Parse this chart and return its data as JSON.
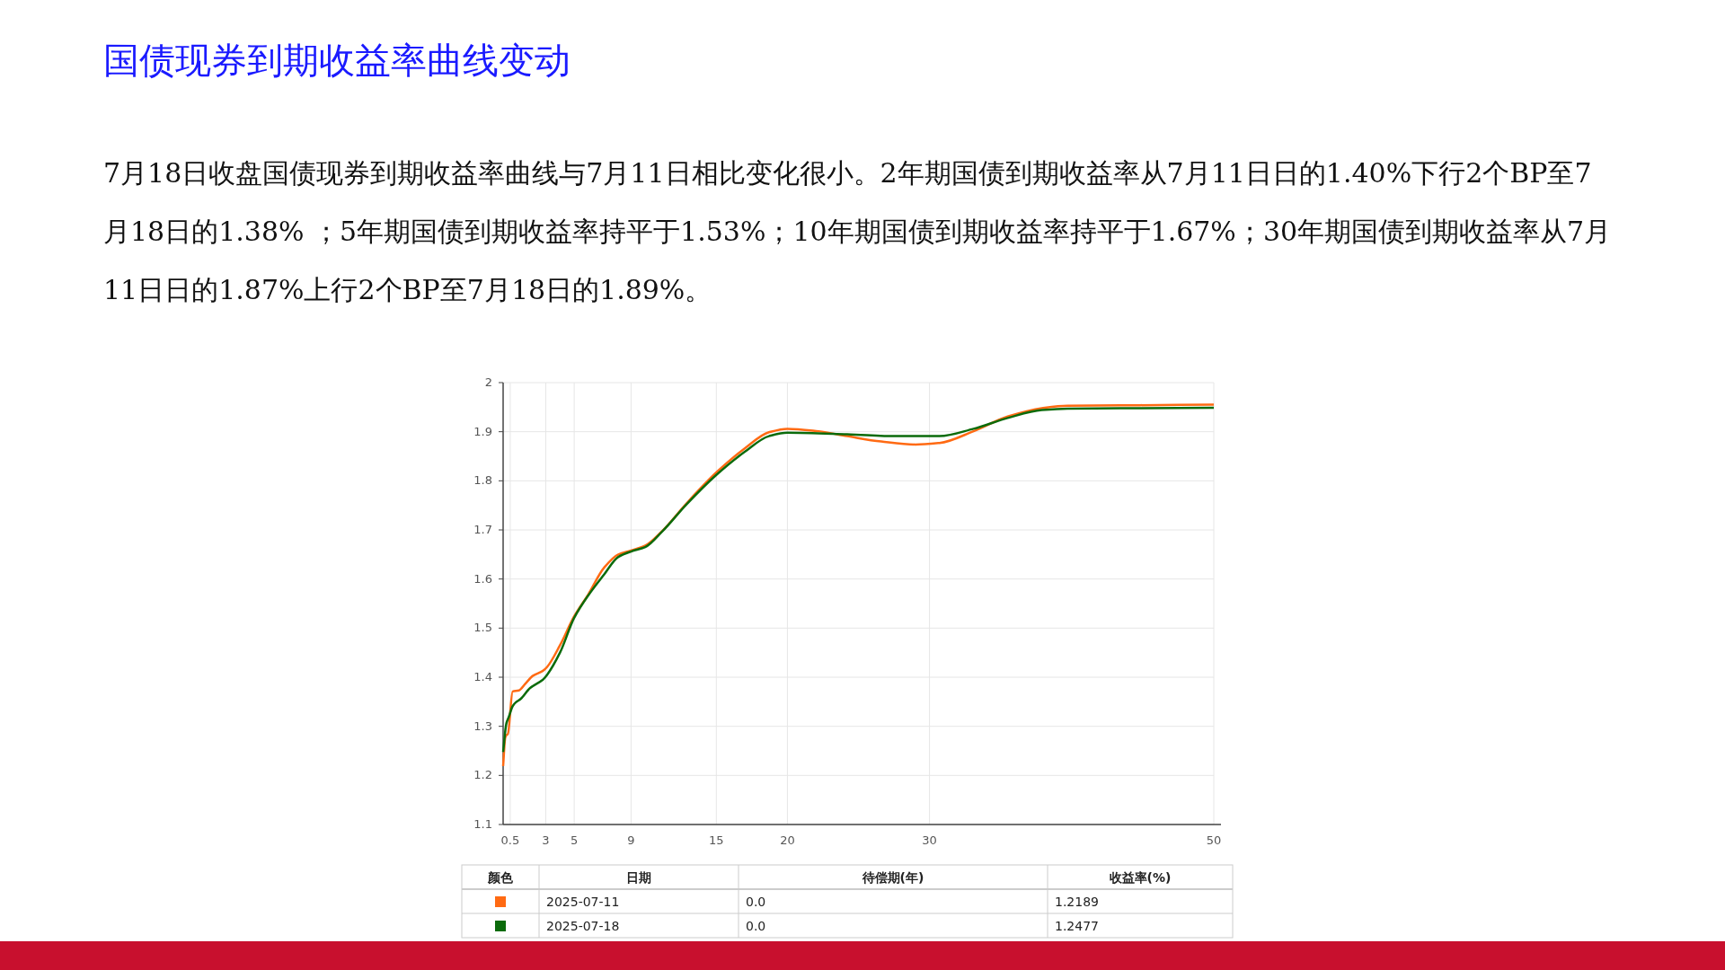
{
  "chart_data": {
    "type": "line",
    "title": "国债现券到期收益率曲线变动",
    "annotations": [
      "7月18日收盘国债现券到期收益率曲线与7月11日相比变化很小。2年期国债到期收益率从7月11日日的1.40%下行2个BP至7月18日的1.38% ；5年期国债到期收益率持平于1.53%；10年期国债到期收益率持平于1.67%；30年期国债到期收益率从7月11日日的1.87%上行2个BP至7月18日的1.89%。",
      "颜色",
      "日期",
      "待偿期(年)",
      "收益率(%)",
      "2025-07-11",
      "0.0",
      "1.2189",
      "2025-07-18",
      "0.0",
      "1.2477"
    ],
    "series": [
      {
        "color": "#ff6a13",
        "x": [
          0,
          0.15,
          0.23,
          0.33,
          0.67,
          1.1,
          1.6,
          2.1,
          2.8,
          3.1,
          4,
          5,
          6,
          7.1,
          8.1,
          9,
          10,
          11.2,
          12.9,
          15,
          17,
          18.7,
          20,
          22.2,
          24.2,
          26.6,
          29,
          30.7,
          33.1,
          35.5,
          37.9,
          39.7,
          44.8,
          50
        ],
        "values": [
          1.2189,
          1.277,
          1.282,
          1.284,
          1.371,
          1.373,
          1.388,
          1.403,
          1.413,
          1.421,
          1.465,
          1.524,
          1.569,
          1.623,
          1.65,
          1.658,
          1.668,
          1.698,
          1.754,
          1.817,
          1.866,
          1.899,
          1.906,
          1.901,
          1.891,
          1.88,
          1.874,
          1.877,
          1.901,
          1.931,
          1.948,
          1.953,
          1.954,
          1.955
        ]
      },
      {
        "color": "#0b6b0b",
        "x": [
          0,
          0.23,
          0.4,
          0.67,
          0.9,
          1.25,
          1.9,
          2.8,
          3.1,
          4,
          5,
          6,
          7.1,
          8.1,
          9,
          10,
          11.2,
          12.9,
          15,
          17,
          18.7,
          20,
          24.2,
          27.7,
          30.7,
          33.1,
          35.5,
          37.9,
          39.7,
          44.8,
          50
        ],
        "values": [
          1.2477,
          1.306,
          1.319,
          1.341,
          1.349,
          1.356,
          1.378,
          1.395,
          1.405,
          1.45,
          1.521,
          1.567,
          1.609,
          1.645,
          1.656,
          1.665,
          1.697,
          1.752,
          1.812,
          1.859,
          1.891,
          1.898,
          1.895,
          1.891,
          1.891,
          1.906,
          1.928,
          1.944,
          1.947,
          1.948,
          1.949
        ]
      }
    ],
    "xlim": [
      0,
      50
    ],
    "xticks": [
      0.5,
      3,
      5,
      9,
      15,
      20,
      30,
      50
    ],
    "ylim": [
      1.1,
      2
    ],
    "yticks": [
      1.1,
      1.2,
      1.3,
      1.4,
      1.5,
      1.6,
      1.7,
      1.8,
      1.9,
      2
    ],
    "grid": true
  }
}
